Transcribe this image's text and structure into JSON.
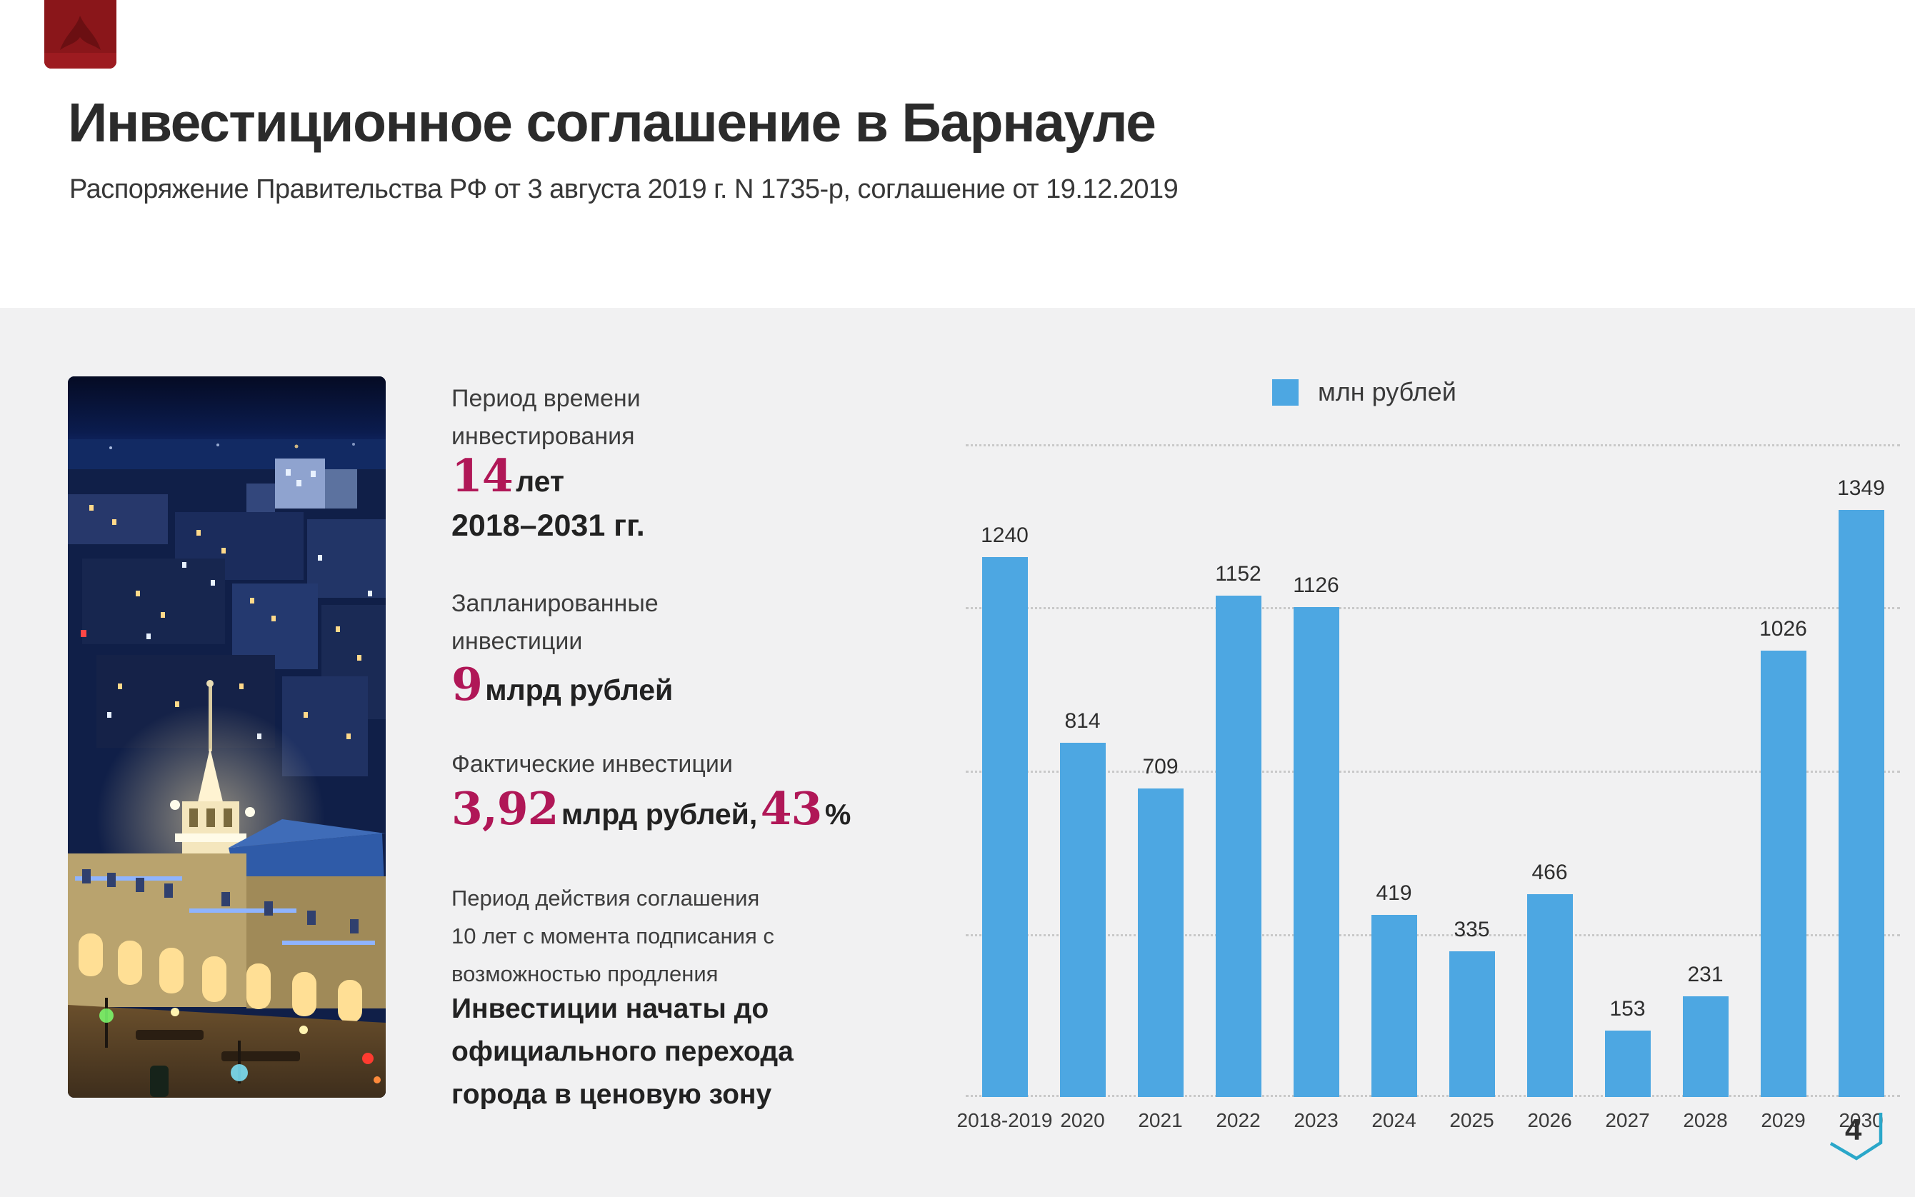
{
  "header": {
    "title": "Инвестиционное соглашение в Барнауле",
    "subtitle": "Распоряжение Правительства РФ от 3 августа 2019 г. N 1735-р, соглашение от 19.12.2019"
  },
  "stats": {
    "period": {
      "label": "Период времени\nинвестирования",
      "value": "14",
      "unit": "лет",
      "range": "2018–2031 гг."
    },
    "planned": {
      "label": "Запланированные\nинвестиции",
      "value": "9",
      "unit": "млрд рублей"
    },
    "actual": {
      "label": "Фактические инвестиции",
      "value": "3,92",
      "unit": "млрд рублей,",
      "percent": "43",
      "percent_unit": "%"
    },
    "note": "Период действия соглашения\n10 лет с момента подписания с\nвозможностью продления",
    "note_bold": "Инвестиции начаты до\nофициального перехода\nгорода в ценовую зону"
  },
  "chart_data": {
    "type": "bar",
    "title": "",
    "legend": "млн рублей",
    "legend_position": "top-center",
    "categories": [
      "2018-2019",
      "2020",
      "2021",
      "2022",
      "2023",
      "2024",
      "2025",
      "2026",
      "2027",
      "2028",
      "2029",
      "2030"
    ],
    "values": [
      1240,
      814,
      709,
      1152,
      1126,
      419,
      335,
      466,
      153,
      231,
      1026,
      1349
    ],
    "xlabel": "",
    "ylabel": "млн рублей",
    "ylim": [
      0,
      1500
    ],
    "gridlines": [
      0,
      375,
      750,
      1125,
      1500
    ],
    "grid": "horizontal-dotted",
    "bar_color": "#4da7e2",
    "data_labels": true
  },
  "photo": {
    "alt": "Ночной Барнаул, дом под шпилем"
  },
  "footer": {
    "page_number": "4"
  },
  "theme": {
    "accent_blue": "#4da7e2",
    "accent_crimson": "#b01757",
    "accent_teal": "#2aa7c9",
    "logo_red": "#8a161a",
    "panel_bg": "#f1f1f2",
    "grid_dot": "#c9c9c9"
  }
}
